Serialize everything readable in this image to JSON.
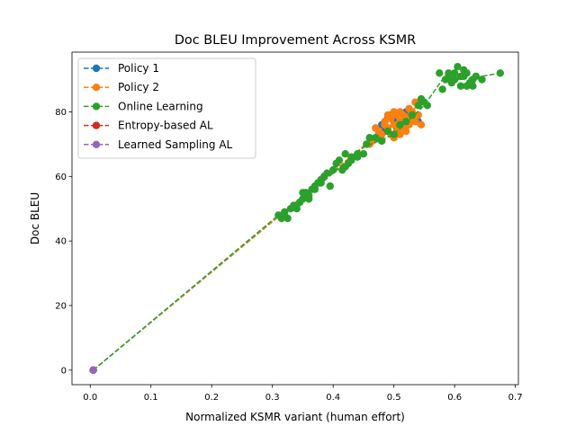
{
  "chart_data": {
    "type": "scatter",
    "title": "Doc BLEU Improvement Across KSMR",
    "xlabel": "Normalized KSMR variant (human effort)",
    "ylabel": "Doc BLEU",
    "xlim": [
      -0.03,
      0.705
    ],
    "ylim": [
      -4.5,
      98.5
    ],
    "xticks": [
      0.0,
      0.1,
      0.2,
      0.3,
      0.4,
      0.5,
      0.6,
      0.7
    ],
    "xtick_labels": [
      "0.0",
      "0.1",
      "0.2",
      "0.3",
      "0.4",
      "0.5",
      "0.6",
      "0.7"
    ],
    "yticks": [
      0,
      20,
      40,
      60,
      80
    ],
    "ytick_labels": [
      "0",
      "20",
      "40",
      "60",
      "80"
    ],
    "grid": false,
    "legend_position": "upper-left",
    "series": [
      {
        "name": "Policy 1",
        "color": "#1f77b4",
        "line": [
          [
            0.005,
            0
          ],
          [
            0.48,
            74
          ],
          [
            0.51,
            77
          ],
          [
            0.54,
            77
          ]
        ],
        "points": [
          [
            0.005,
            0
          ],
          [
            0.47,
            75
          ],
          [
            0.48,
            76
          ],
          [
            0.49,
            78
          ],
          [
            0.5,
            77
          ],
          [
            0.51,
            76
          ],
          [
            0.52,
            78
          ],
          [
            0.53,
            79
          ],
          [
            0.54,
            77
          ],
          [
            0.485,
            74
          ],
          [
            0.495,
            79
          ],
          [
            0.505,
            75
          ],
          [
            0.515,
            77
          ],
          [
            0.475,
            73
          ],
          [
            0.52,
            80
          ]
        ]
      },
      {
        "name": "Policy 2",
        "color": "#ff7f0e",
        "line": [
          [
            0.005,
            0
          ],
          [
            0.46,
            71
          ],
          [
            0.5,
            76
          ],
          [
            0.54,
            82
          ]
        ],
        "points": [
          [
            0.005,
            0
          ],
          [
            0.46,
            70
          ],
          [
            0.47,
            72
          ],
          [
            0.48,
            73
          ],
          [
            0.49,
            75
          ],
          [
            0.5,
            76
          ],
          [
            0.51,
            77
          ],
          [
            0.52,
            78
          ],
          [
            0.53,
            80
          ],
          [
            0.54,
            82
          ],
          [
            0.475,
            74
          ],
          [
            0.485,
            77
          ],
          [
            0.495,
            73
          ],
          [
            0.505,
            79
          ],
          [
            0.515,
            75
          ],
          [
            0.525,
            81
          ],
          [
            0.535,
            77
          ],
          [
            0.545,
            76
          ],
          [
            0.5,
            72
          ],
          [
            0.51,
            80
          ],
          [
            0.49,
            79
          ],
          [
            0.48,
            71
          ],
          [
            0.52,
            74
          ],
          [
            0.53,
            78
          ],
          [
            0.54,
            79
          ],
          [
            0.465,
            71
          ],
          [
            0.485,
            76
          ],
          [
            0.495,
            78
          ],
          [
            0.505,
            74
          ],
          [
            0.515,
            79
          ],
          [
            0.525,
            76
          ],
          [
            0.535,
            83
          ],
          [
            0.47,
            75
          ],
          [
            0.5,
            80
          ],
          [
            0.51,
            73
          ],
          [
            0.52,
            77
          ]
        ]
      },
      {
        "name": "Online Learning",
        "color": "#2ca02c",
        "line": [
          [
            0.005,
            0
          ],
          [
            0.31,
            48
          ],
          [
            0.35,
            53
          ],
          [
            0.4,
            61
          ],
          [
            0.45,
            69
          ],
          [
            0.5,
            73
          ],
          [
            0.55,
            82
          ],
          [
            0.58,
            90
          ],
          [
            0.61,
            90
          ],
          [
            0.645,
            91
          ],
          [
            0.675,
            92
          ]
        ],
        "points": [
          [
            0.005,
            0
          ],
          [
            0.31,
            48
          ],
          [
            0.315,
            47
          ],
          [
            0.32,
            49
          ],
          [
            0.325,
            47
          ],
          [
            0.33,
            50
          ],
          [
            0.335,
            51
          ],
          [
            0.34,
            51
          ],
          [
            0.345,
            52
          ],
          [
            0.35,
            53
          ],
          [
            0.355,
            55
          ],
          [
            0.36,
            54
          ],
          [
            0.365,
            56
          ],
          [
            0.37,
            57
          ],
          [
            0.375,
            58
          ],
          [
            0.38,
            59
          ],
          [
            0.385,
            60
          ],
          [
            0.39,
            61
          ],
          [
            0.395,
            57
          ],
          [
            0.4,
            62
          ],
          [
            0.405,
            64
          ],
          [
            0.41,
            65
          ],
          [
            0.415,
            62
          ],
          [
            0.42,
            67
          ],
          [
            0.425,
            64
          ],
          [
            0.43,
            65
          ],
          [
            0.44,
            66
          ],
          [
            0.45,
            67
          ],
          [
            0.455,
            70
          ],
          [
            0.46,
            72
          ],
          [
            0.47,
            72
          ],
          [
            0.48,
            71
          ],
          [
            0.49,
            74
          ],
          [
            0.5,
            73
          ],
          [
            0.51,
            76
          ],
          [
            0.52,
            77
          ],
          [
            0.53,
            79
          ],
          [
            0.54,
            82
          ],
          [
            0.545,
            84
          ],
          [
            0.55,
            83
          ],
          [
            0.555,
            82
          ],
          [
            0.575,
            92
          ],
          [
            0.58,
            87
          ],
          [
            0.585,
            90
          ],
          [
            0.59,
            91
          ],
          [
            0.595,
            89
          ],
          [
            0.6,
            90
          ],
          [
            0.605,
            94
          ],
          [
            0.61,
            88
          ],
          [
            0.615,
            91
          ],
          [
            0.62,
            92
          ],
          [
            0.625,
            89
          ],
          [
            0.63,
            90
          ],
          [
            0.635,
            91
          ],
          [
            0.645,
            90
          ],
          [
            0.675,
            92
          ],
          [
            0.36,
            53
          ],
          [
            0.34,
            50
          ],
          [
            0.32,
            48
          ],
          [
            0.38,
            58
          ],
          [
            0.42,
            63
          ],
          [
            0.6,
            92
          ],
          [
            0.61,
            91
          ],
          [
            0.62,
            88
          ],
          [
            0.59,
            92
          ],
          [
            0.63,
            88
          ],
          [
            0.615,
            93
          ],
          [
            0.35,
            55
          ],
          [
            0.37,
            56
          ],
          [
            0.43,
            66
          ],
          [
            0.44,
            67
          ]
        ]
      },
      {
        "name": "Entropy-based AL",
        "color": "#d62728",
        "line": [
          [
            0.005,
            0
          ]
        ],
        "points": [
          [
            0.005,
            0
          ]
        ]
      },
      {
        "name": "Learned Sampling AL",
        "color": "#9467bd",
        "line": [
          [
            0.005,
            0
          ]
        ],
        "points": [
          [
            0.005,
            0
          ]
        ]
      }
    ]
  }
}
